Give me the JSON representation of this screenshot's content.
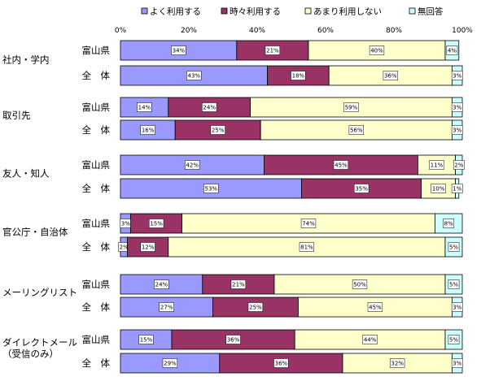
{
  "chart_data": {
    "type": "bar",
    "stacked": true,
    "orientation": "horizontal",
    "percent_stacked": true,
    "value_suffix": "%",
    "xlim": [
      0,
      100
    ],
    "xticks": [
      "0%",
      "20%",
      "40%",
      "60%",
      "80%",
      "100%"
    ],
    "grid": false,
    "legend_position": "top",
    "series": [
      {
        "name": "よく利用する",
        "color": "#9999ff"
      },
      {
        "name": "時々利用する",
        "color": "#993366"
      },
      {
        "name": "あまり利用しない",
        "color": "#ffffcc"
      },
      {
        "name": "無回答",
        "color": "#ccffff"
      }
    ],
    "groups": [
      {
        "label": "社内・学内",
        "rows": [
          {
            "label": "富山県",
            "values": [
              34,
              21,
              40,
              4
            ]
          },
          {
            "label": "全　体",
            "values": [
              43,
              18,
              36,
              3
            ]
          }
        ]
      },
      {
        "label": "取引先",
        "rows": [
          {
            "label": "富山県",
            "values": [
              14,
              24,
              59,
              3
            ]
          },
          {
            "label": "全　体",
            "values": [
              16,
              25,
              56,
              3
            ]
          }
        ]
      },
      {
        "label": "友人・知人",
        "rows": [
          {
            "label": "富山県",
            "values": [
              42,
              45,
              11,
              2
            ]
          },
          {
            "label": "全　体",
            "values": [
              53,
              35,
              10,
              1
            ]
          }
        ]
      },
      {
        "label": "官公庁・自治体",
        "rows": [
          {
            "label": "富山県",
            "values": [
              3,
              15,
              74,
              8
            ]
          },
          {
            "label": "全　体",
            "values": [
              2,
              12,
              81,
              5
            ]
          }
        ]
      },
      {
        "label": "メーリングリスト",
        "rows": [
          {
            "label": "富山県",
            "values": [
              24,
              21,
              50,
              5
            ]
          },
          {
            "label": "全　体",
            "values": [
              27,
              25,
              45,
              3
            ]
          }
        ]
      },
      {
        "label": "ダイレクトメール\n（受信のみ）",
        "rows": [
          {
            "label": "富山県",
            "values": [
              15,
              36,
              44,
              5
            ]
          },
          {
            "label": "全　体",
            "values": [
              29,
              36,
              32,
              3
            ]
          }
        ]
      }
    ]
  }
}
